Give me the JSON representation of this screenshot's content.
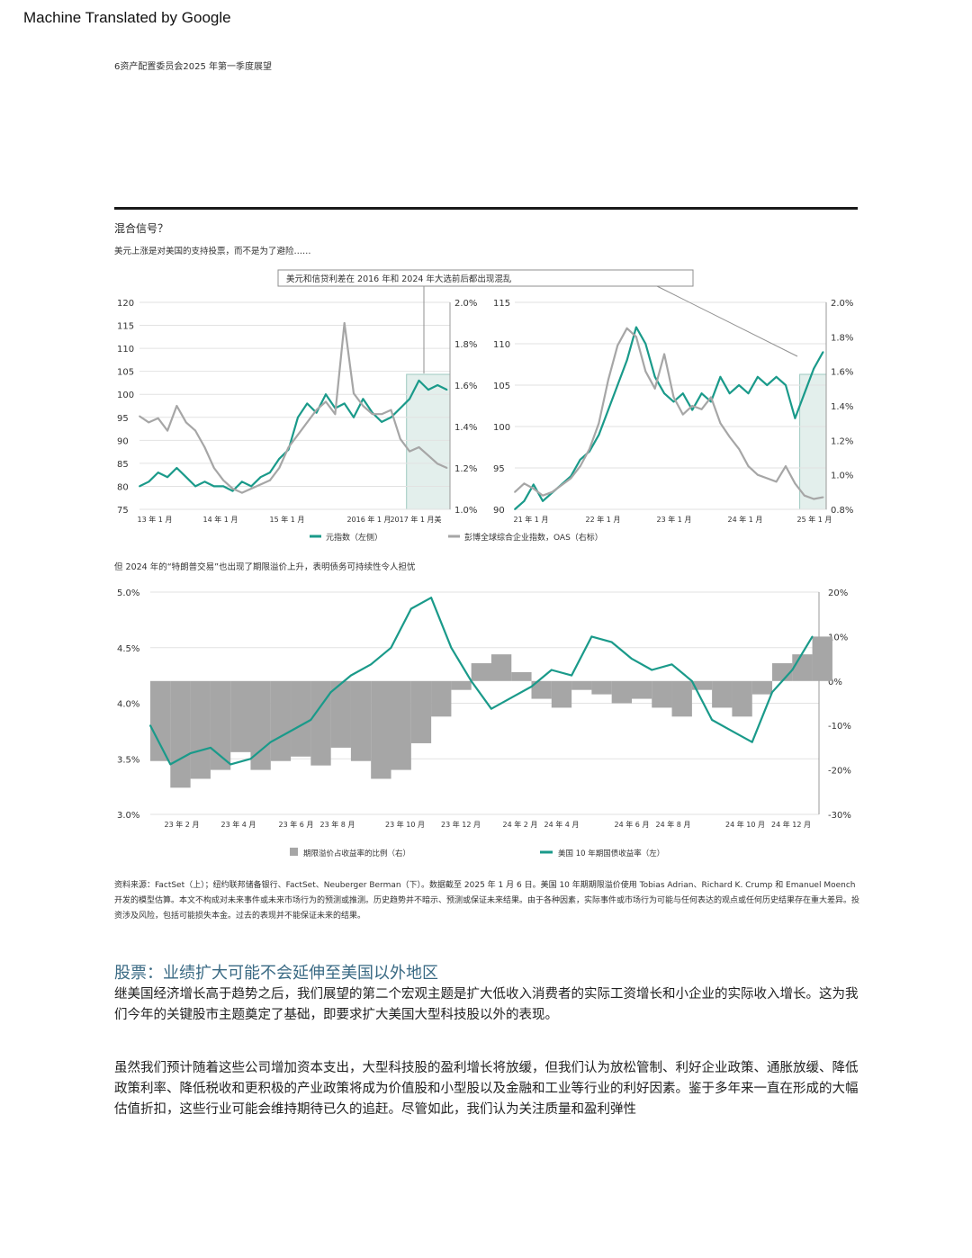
{
  "banner": "Machine Translated by Google",
  "header": "6资产配置委员会2025 年第一季度展望",
  "section_title": "混合信号？",
  "subtitle_top": "美元上涨是对美国的支持投票，而不是为了避险……",
  "callout": "美元和信贷利差在 2016 年和 2024 年大选前后都出现混乱",
  "subtitle_bottom": "但 2024 年的“特朗普交易”也出现了期限溢价上升，表明债务可持续性令人担忧",
  "legend_top": {
    "usd": "元指数（左侧）",
    "oas": "彭博全球综合企业指数，OAS（右标）"
  },
  "legend_bottom": {
    "tp": "期限溢价占收益率的比例（右）",
    "y10": "美国 10 年期国债收益率（左）"
  },
  "colors": {
    "teal": "#1a9a8a",
    "gray": "#a6a6a6",
    "highlight": "#e3efec"
  },
  "chart_data": [
    {
      "type": "line",
      "title": "",
      "x_ticks": [
        "13 年 1 月",
        "14 年 1 月",
        "15 年 1 月",
        "2016 年 1 月",
        "2017 年 1 月美"
      ],
      "y_left_ticks": [
        "75",
        "80",
        "85",
        "90",
        "95",
        "100",
        "105",
        "110",
        "115",
        "120"
      ],
      "y_right_ticks": [
        "1.0%",
        "1.2%",
        "1.4%",
        "1.6%",
        "1.8%",
        "2.0%"
      ],
      "ylim_left": [
        75,
        120
      ],
      "ylim_right": [
        1.0,
        2.0
      ],
      "x_range": [
        0,
        1
      ],
      "series": [
        {
          "name": "元指数（左侧）",
          "axis": "left",
          "x": [
            0,
            0.03,
            0.06,
            0.09,
            0.12,
            0.15,
            0.18,
            0.21,
            0.24,
            0.27,
            0.3,
            0.33,
            0.36,
            0.39,
            0.42,
            0.45,
            0.48,
            0.51,
            0.54,
            0.57,
            0.6,
            0.63,
            0.66,
            0.69,
            0.72,
            0.75,
            0.78,
            0.81,
            0.84,
            0.87,
            0.9,
            0.93,
            0.96,
            0.99
          ],
          "values": [
            80,
            81,
            83,
            82,
            84,
            82,
            80,
            81,
            80,
            80,
            79,
            81,
            80,
            82,
            83,
            86,
            88,
            95,
            98,
            96,
            100,
            97,
            98,
            95,
            99,
            96,
            94,
            95,
            97,
            99,
            103,
            101,
            102,
            101
          ]
        },
        {
          "name": "彭博全球综合企业指数，OAS（右标）",
          "axis": "right",
          "x": [
            0,
            0.03,
            0.06,
            0.09,
            0.12,
            0.15,
            0.18,
            0.21,
            0.24,
            0.27,
            0.3,
            0.33,
            0.36,
            0.39,
            0.42,
            0.45,
            0.48,
            0.51,
            0.54,
            0.57,
            0.6,
            0.63,
            0.66,
            0.69,
            0.72,
            0.75,
            0.78,
            0.81,
            0.84,
            0.87,
            0.9,
            0.93,
            0.96,
            0.99
          ],
          "values": [
            1.45,
            1.42,
            1.44,
            1.38,
            1.5,
            1.42,
            1.38,
            1.3,
            1.2,
            1.14,
            1.1,
            1.08,
            1.1,
            1.12,
            1.14,
            1.2,
            1.3,
            1.36,
            1.42,
            1.48,
            1.52,
            1.46,
            1.9,
            1.56,
            1.5,
            1.46,
            1.46,
            1.48,
            1.34,
            1.28,
            1.3,
            1.26,
            1.22,
            1.2
          ]
        }
      ]
    },
    {
      "type": "line",
      "title": "",
      "x_ticks": [
        "21 年 1 月",
        "22 年 1 月",
        "23 年 1 月",
        "24 年 1 月",
        "25 年 1 月"
      ],
      "y_left_ticks": [
        "90",
        "95",
        "100",
        "105",
        "110",
        "115"
      ],
      "y_right_ticks": [
        "0.8%",
        "1.0%",
        "1.2%",
        "1.4%",
        "1.6%",
        "1.8%",
        "2.0%"
      ],
      "ylim_left": [
        90,
        115
      ],
      "ylim_right": [
        0.8,
        2.0
      ],
      "x_range": [
        0,
        1
      ],
      "series": [
        {
          "name": "元指数（左侧）",
          "axis": "left",
          "x": [
            0,
            0.03,
            0.06,
            0.09,
            0.12,
            0.15,
            0.18,
            0.21,
            0.24,
            0.27,
            0.3,
            0.33,
            0.36,
            0.39,
            0.42,
            0.45,
            0.48,
            0.51,
            0.54,
            0.57,
            0.6,
            0.63,
            0.66,
            0.69,
            0.72,
            0.75,
            0.78,
            0.81,
            0.84,
            0.87,
            0.9,
            0.93,
            0.96,
            0.99
          ],
          "values": [
            90,
            91,
            93,
            91,
            92,
            93,
            94,
            96,
            97,
            99,
            102,
            105,
            108,
            112,
            110,
            106,
            104,
            103,
            104,
            102,
            104,
            103,
            106,
            104,
            105,
            104,
            106,
            105,
            106,
            105,
            101,
            104,
            107,
            109
          ]
        },
        {
          "name": "彭博全球综合企业指数，OAS（右标）",
          "axis": "right",
          "x": [
            0,
            0.03,
            0.06,
            0.09,
            0.12,
            0.15,
            0.18,
            0.21,
            0.24,
            0.27,
            0.3,
            0.33,
            0.36,
            0.39,
            0.42,
            0.45,
            0.48,
            0.51,
            0.54,
            0.57,
            0.6,
            0.63,
            0.66,
            0.69,
            0.72,
            0.75,
            0.78,
            0.81,
            0.84,
            0.87,
            0.9,
            0.93,
            0.96,
            0.99
          ],
          "values": [
            0.9,
            0.95,
            0.92,
            0.88,
            0.9,
            0.94,
            0.98,
            1.05,
            1.15,
            1.3,
            1.55,
            1.75,
            1.85,
            1.8,
            1.6,
            1.5,
            1.7,
            1.45,
            1.35,
            1.4,
            1.38,
            1.45,
            1.3,
            1.22,
            1.15,
            1.05,
            1.0,
            0.98,
            0.96,
            1.05,
            0.95,
            0.88,
            0.86,
            0.87
          ]
        }
      ]
    },
    {
      "type": "bar+line",
      "title": "",
      "x_ticks": [
        "23 年 2 月",
        "23 年 4 月",
        "23 年 6 月",
        "23 年 8 月",
        "23 年 10 月",
        "23 年 12 月",
        "24 年 2 月",
        "24 年 4 月",
        "24 年 6 月",
        "24 年 8 月",
        "24 年 10 月",
        "24 年 12 月"
      ],
      "y_left_ticks": [
        "3.0%",
        "3.5%",
        "4.0%",
        "4.5%",
        "5.0%"
      ],
      "y_right_ticks": [
        "-30%",
        "-20%",
        "-10%",
        "0%",
        "10%",
        "20%"
      ],
      "ylim_left": [
        3.0,
        5.0
      ],
      "ylim_right": [
        -30,
        20
      ],
      "x_range": [
        0,
        1
      ],
      "series": [
        {
          "name": "期限溢价占收益率的比例（右）",
          "axis": "right",
          "kind": "bar",
          "x": [
            0,
            0.03,
            0.06,
            0.09,
            0.12,
            0.15,
            0.18,
            0.21,
            0.24,
            0.27,
            0.3,
            0.33,
            0.36,
            0.39,
            0.42,
            0.45,
            0.48,
            0.51,
            0.54,
            0.57,
            0.6,
            0.63,
            0.66,
            0.69,
            0.72,
            0.75,
            0.78,
            0.81,
            0.84,
            0.87,
            0.9,
            0.93,
            0.96,
            0.99
          ],
          "values": [
            -18,
            -24,
            -22,
            -20,
            -16,
            -20,
            -18,
            -17,
            -19,
            -15,
            -18,
            -22,
            -20,
            -14,
            -8,
            -2,
            4,
            6,
            2,
            -4,
            -6,
            -2,
            -3,
            -5,
            -4,
            -6,
            -8,
            -2,
            -6,
            -8,
            -3,
            4,
            6,
            10
          ]
        },
        {
          "name": "美国 10 年期国债收益率（左）",
          "axis": "left",
          "kind": "line",
          "x": [
            0,
            0.03,
            0.06,
            0.09,
            0.12,
            0.15,
            0.18,
            0.21,
            0.24,
            0.27,
            0.3,
            0.33,
            0.36,
            0.39,
            0.42,
            0.45,
            0.48,
            0.51,
            0.54,
            0.57,
            0.6,
            0.63,
            0.66,
            0.69,
            0.72,
            0.75,
            0.78,
            0.81,
            0.84,
            0.87,
            0.9,
            0.93,
            0.96,
            0.99
          ],
          "values": [
            3.8,
            3.45,
            3.55,
            3.6,
            3.45,
            3.5,
            3.65,
            3.75,
            3.85,
            4.1,
            4.25,
            4.35,
            4.5,
            4.85,
            4.95,
            4.5,
            4.2,
            3.95,
            4.05,
            4.15,
            4.3,
            4.25,
            4.6,
            4.55,
            4.4,
            4.3,
            4.35,
            4.2,
            3.85,
            3.75,
            3.65,
            4.1,
            4.3,
            4.6
          ]
        }
      ]
    }
  ],
  "source_note": "资料来源：FactSet（上）；纽约联邦储备银行、FactSet、Neuberger Berman（下）。数据截至 2025 年 1 月 6 日。美国 10 年期期限溢价使用 Tobias Adrian、Richard K. Crump 和 Emanuel Moench 开发的模型估算。本文不构成对未来事件或未来市场行为的预测或推测。历史趋势并不暗示、预测或保证未来结果。由于各种因素，实际事件或市场行为可能与任何表达的观点或任何历史结果存在重大差异。投资涉及风险，包括可能损失本金。过去的表现并不能保证未来的结果。",
  "equities_heading": "股票：业绩扩大可能不会延伸至美国以外地区",
  "paragraph1": "继美国经济增长高于趋势之后，我们展望的第二个宏观主题是扩大低收入消费者的实际工资增长和小企业的实际收入增长。这为我们今年的关键股市主题奠定了基础，即要求扩大美国大型科技股以外的表现。",
  "paragraph2": "虽然我们预计随着这些公司增加资本支出，大型科技股的盈利增长将放缓，但我们认为放松管制、利好企业政策、通胀放缓、降低政策利率、降低税收和更积极的产业政策将成为价值股和小型股以及金融和工业等行业的利好因素。鉴于多年来一直在形成的大幅估值折扣，这些行业可能会维持期待已久的追赶。尽管如此，我们认为关注质量和盈利弹性"
}
